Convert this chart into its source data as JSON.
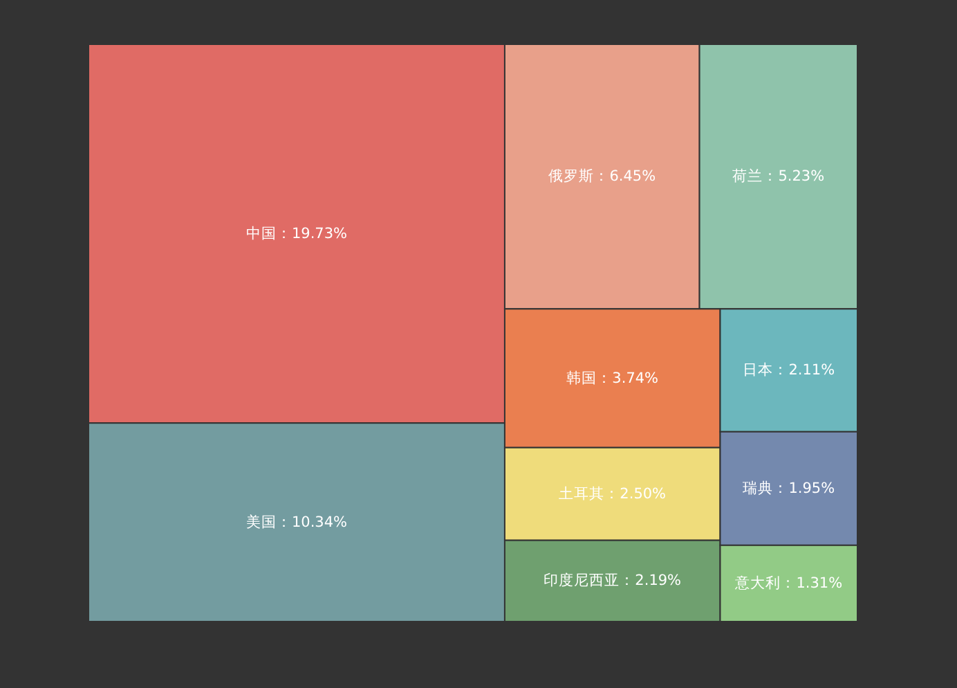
{
  "chart_data": {
    "type": "other",
    "categories": [
      "中国",
      "美国",
      "俄罗斯",
      "荷兰",
      "韩国",
      "土耳其",
      "印度尼西亚",
      "日本",
      "瑞典",
      "意大利"
    ],
    "values": [
      19.73,
      10.34,
      6.45,
      5.23,
      3.74,
      2.5,
      2.19,
      2.11,
      1.95,
      1.31
    ],
    "value_labels": [
      "：19.73%",
      "：10.34%",
      "：6.45%",
      "：5.23%",
      "：3.74%",
      "：2.50%",
      "：2.19%",
      "：2.11%",
      "：1.95%",
      "：1.31%"
    ],
    "colors": [
      "#e06b65",
      "#739ca0",
      "#e8a08a",
      "#8fc3ab",
      "#ea7f50",
      "#efdc7b",
      "#6fa06f",
      "#6cb7bd",
      "#7489ae",
      "#92cb86"
    ]
  }
}
